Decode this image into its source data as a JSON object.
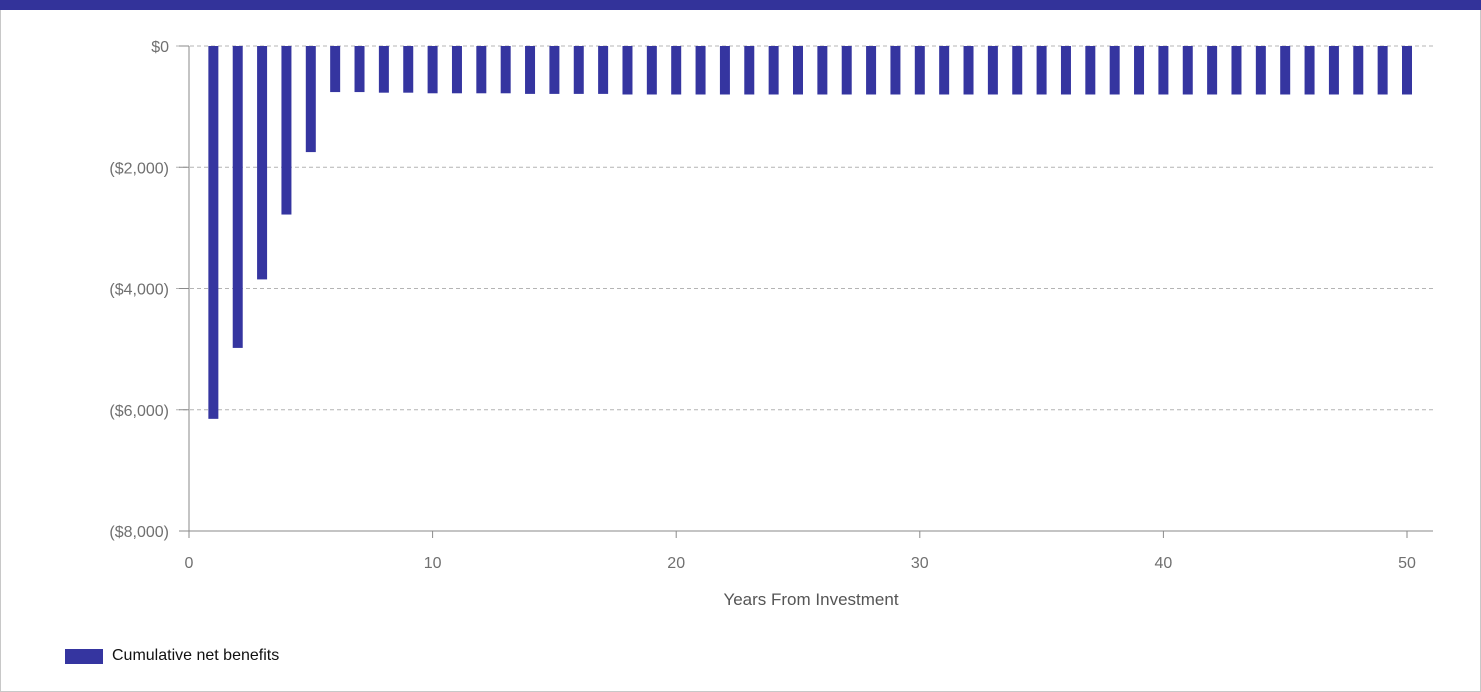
{
  "colors": {
    "accent": "#33339a",
    "bar": "#3535a0",
    "gridline": "#b4b4b4",
    "axis": "#8a8a8a"
  },
  "legend": {
    "label": "Cumulative net benefits"
  },
  "chart_data": {
    "type": "bar",
    "xlabel": "Years From Investment",
    "ylabel": "",
    "title": "",
    "xlim": [
      0,
      51
    ],
    "ylim": [
      -8000,
      0
    ],
    "x_ticks": [
      0,
      10,
      20,
      30,
      40,
      50
    ],
    "x_tick_labels": [
      "0",
      "10",
      "20",
      "30",
      "40",
      "50"
    ],
    "y_ticks": [
      0,
      -2000,
      -4000,
      -6000,
      -8000
    ],
    "y_tick_labels": [
      "$0",
      "($2,000)",
      "($4,000)",
      "($6,000)",
      "($8,000)"
    ],
    "grid": "horizontal-dashed",
    "legend_position": "bottom-left",
    "series": [
      {
        "name": "Cumulative net benefits",
        "x": [
          1,
          2,
          3,
          4,
          5,
          6,
          7,
          8,
          9,
          10,
          11,
          12,
          13,
          14,
          15,
          16,
          17,
          18,
          19,
          20,
          21,
          22,
          23,
          24,
          25,
          26,
          27,
          28,
          29,
          30,
          31,
          32,
          33,
          34,
          35,
          36,
          37,
          38,
          39,
          40,
          41,
          42,
          43,
          44,
          45,
          46,
          47,
          48,
          49,
          50
        ],
        "values": [
          -6150,
          -4980,
          -3850,
          -2780,
          -1750,
          -760,
          -760,
          -770,
          -770,
          -780,
          -780,
          -780,
          -780,
          -790,
          -790,
          -790,
          -790,
          -800,
          -800,
          -800,
          -800,
          -800,
          -800,
          -800,
          -800,
          -800,
          -800,
          -800,
          -800,
          -800,
          -800,
          -800,
          -800,
          -800,
          -800,
          -800,
          -800,
          -800,
          -800,
          -800,
          -800,
          -800,
          -800,
          -800,
          -800,
          -800,
          -800,
          -800,
          -800,
          -800
        ]
      }
    ]
  }
}
